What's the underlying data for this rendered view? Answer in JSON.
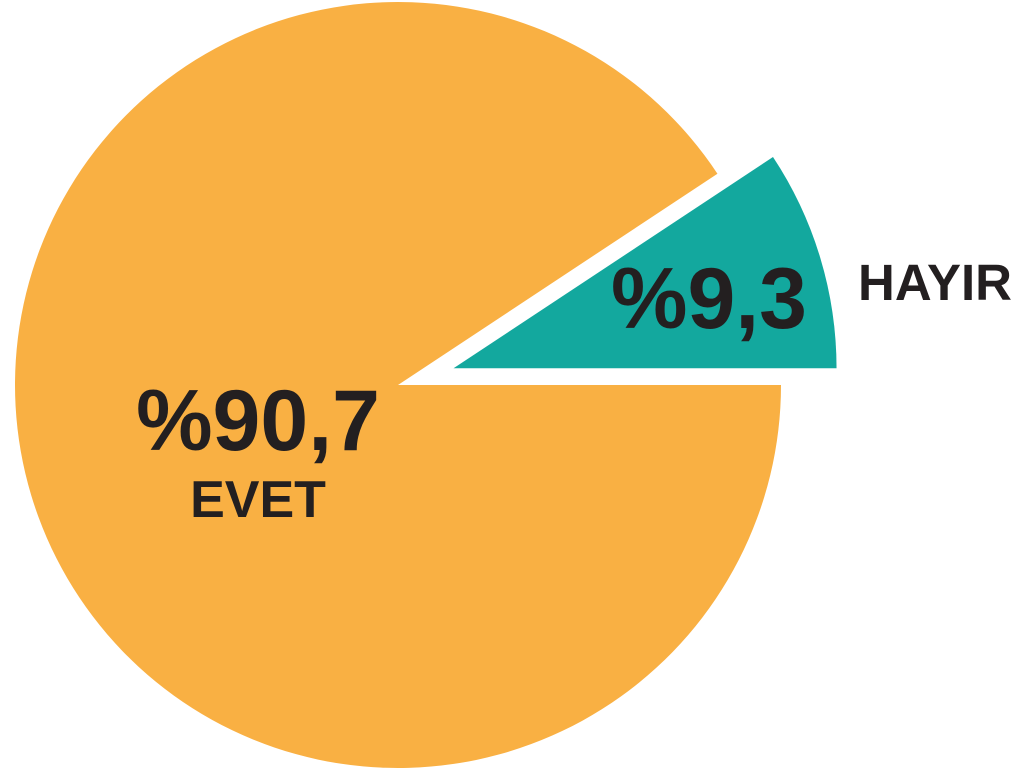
{
  "chart_data": {
    "type": "pie",
    "categories": [
      "EVET",
      "HAYIR"
    ],
    "values": [
      90.7,
      9.3
    ],
    "value_labels": [
      "%90,7",
      "%9,3"
    ],
    "colors": [
      "#f9b043",
      "#13a89e"
    ],
    "explode": [
      false,
      true
    ]
  }
}
